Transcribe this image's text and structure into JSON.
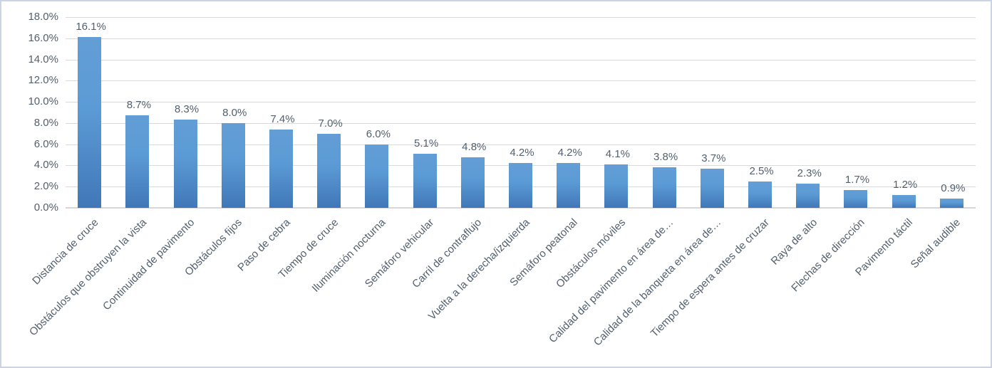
{
  "window": {
    "background": "#ffffff",
    "frame_border_color": "#c9d4e4"
  },
  "chart_data": {
    "type": "bar",
    "title": "",
    "xlabel": "",
    "ylabel": "",
    "legend": "none",
    "grid": true,
    "ylim": [
      0,
      18
    ],
    "y_tick_interval": 2,
    "y_ticks": [
      "0.0%",
      "2.0%",
      "4.0%",
      "6.0%",
      "8.0%",
      "10.0%",
      "12.0%",
      "14.0%",
      "16.0%",
      "18.0%"
    ],
    "categories": [
      "Distancia de cruce",
      "Obstáculos que obstruyen la vista",
      "Continuidad de pavimento",
      "Obstáculos fijos",
      "Paso de cebra",
      "Tiempo de cruce",
      "Iluminación nocturna",
      "Semáforo vehicular",
      "Carril de contraflujo",
      "Vuelta a la derecha/izquierda",
      "Semáforo peatonal",
      "Obstáculos móviles",
      "Calidad del pavimento en área de…",
      "Calidad de la banqueta en área de…",
      "Tiempo de espera antes de cruzar",
      "Raya de alto",
      "Flechas de dirección",
      "Pavimento táctil",
      "Señal audible"
    ],
    "values": [
      16.1,
      8.7,
      8.3,
      8.0,
      7.4,
      7.0,
      6.0,
      5.1,
      4.8,
      4.2,
      4.2,
      4.1,
      3.8,
      3.7,
      2.5,
      2.3,
      1.7,
      1.2,
      0.9
    ],
    "data_labels": [
      "16.1%",
      "8.7%",
      "8.3%",
      "8.0%",
      "7.4%",
      "7.0%",
      "6.0%",
      "5.1%",
      "4.8%",
      "4.2%",
      "4.2%",
      "4.1%",
      "3.8%",
      "3.7%",
      "2.5%",
      "2.3%",
      "1.7%",
      "1.2%",
      "0.9%"
    ],
    "bar_color": "#5b9bd5",
    "bar_gradient_top": "#639dd6",
    "bar_gradient_bottom": "#4177b8",
    "gridline_color": "#d9d9d9",
    "axis_text_color": "#525f6e"
  }
}
